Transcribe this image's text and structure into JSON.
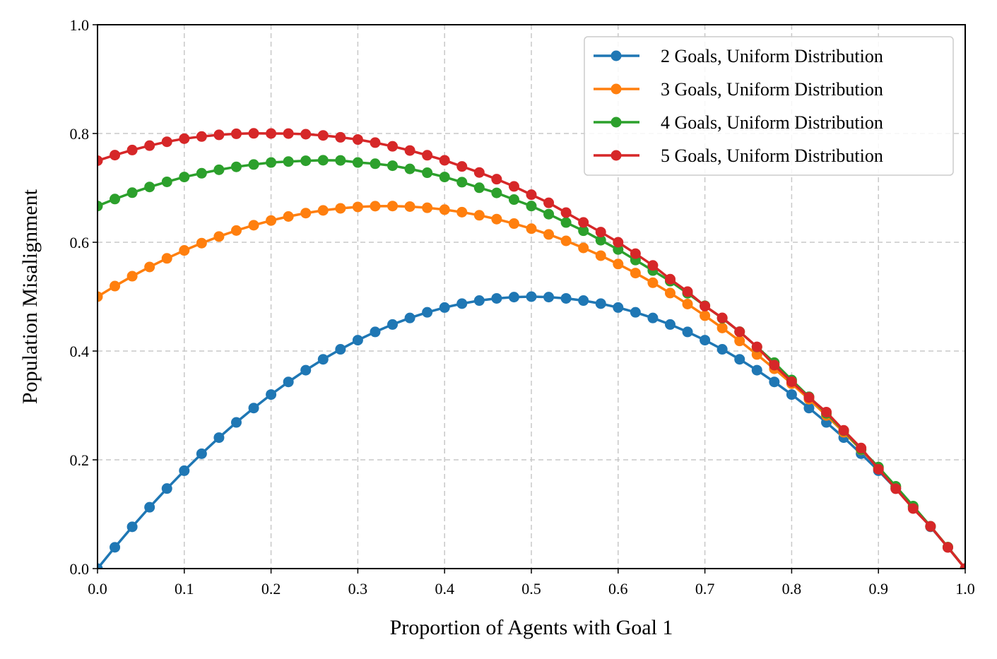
{
  "chart_data": {
    "type": "line",
    "title": "",
    "xlabel": "Proportion of Agents with Goal 1",
    "ylabel": "Population Misalignment",
    "xlim": [
      0.0,
      1.0
    ],
    "ylim": [
      0.0,
      1.0
    ],
    "xticks": [
      "0.0",
      "0.1",
      "0.2",
      "0.3",
      "0.4",
      "0.5",
      "0.6",
      "0.7",
      "0.8",
      "0.9",
      "1.0"
    ],
    "yticks": [
      "0.0",
      "0.2",
      "0.4",
      "0.6",
      "0.8",
      "1.0"
    ],
    "xtick_values": [
      0.0,
      0.1,
      0.2,
      0.3,
      0.4,
      0.5,
      0.6,
      0.7,
      0.8,
      0.9,
      1.0
    ],
    "ytick_values": [
      0.0,
      0.2,
      0.4,
      0.6,
      0.8,
      1.0
    ],
    "grid": true,
    "legend_position": "top-right",
    "x": [
      0.0,
      0.02,
      0.04,
      0.06,
      0.08,
      0.1,
      0.12,
      0.14,
      0.16,
      0.18,
      0.2,
      0.22,
      0.24,
      0.26,
      0.28,
      0.3,
      0.32,
      0.34,
      0.36,
      0.38,
      0.4,
      0.42,
      0.44,
      0.46,
      0.48,
      0.5,
      0.52,
      0.54,
      0.56,
      0.58,
      0.6,
      0.62,
      0.64,
      0.66,
      0.68,
      0.7,
      0.72,
      0.74,
      0.76,
      0.78,
      0.8,
      0.82,
      0.84,
      0.86,
      0.88,
      0.9,
      0.92,
      0.94,
      0.96,
      0.98,
      1.0
    ],
    "series": [
      {
        "name": "2 Goals, Uniform Distribution",
        "color": "#1f77b4",
        "values": [
          0.0,
          0.0392,
          0.0768,
          0.1128,
          0.1472,
          0.18,
          0.2112,
          0.2408,
          0.2688,
          0.2952,
          0.32,
          0.3432,
          0.3648,
          0.3848,
          0.4032,
          0.42,
          0.4352,
          0.4488,
          0.4608,
          0.4712,
          0.48,
          0.4872,
          0.4928,
          0.4968,
          0.4992,
          0.5,
          0.4992,
          0.4968,
          0.4928,
          0.4872,
          0.48,
          0.4712,
          0.4608,
          0.4488,
          0.4352,
          0.42,
          0.4032,
          0.3848,
          0.3648,
          0.3432,
          0.32,
          0.2952,
          0.2688,
          0.2408,
          0.2112,
          0.18,
          0.1472,
          0.1128,
          0.0768,
          0.0392,
          0.0
        ]
      },
      {
        "name": "3 Goals, Uniform Distribution",
        "color": "#ff7f0e",
        "values": [
          0.5,
          0.5194,
          0.5376,
          0.5546,
          0.5704,
          0.585,
          0.5984,
          0.6106,
          0.6216,
          0.6314,
          0.64,
          0.6474,
          0.6536,
          0.6586,
          0.6624,
          0.665,
          0.6664,
          0.6666,
          0.6656,
          0.6634,
          0.66,
          0.6554,
          0.6496,
          0.6426,
          0.6344,
          0.625,
          0.6144,
          0.6026,
          0.5896,
          0.5754,
          0.56,
          0.5434,
          0.5256,
          0.5066,
          0.4864,
          0.465,
          0.4424,
          0.4186,
          0.3936,
          0.3674,
          0.34,
          0.3114,
          0.2816,
          0.2506,
          0.2184,
          0.185,
          0.1504,
          0.1146,
          0.0776,
          0.0394,
          0.0
        ]
      },
      {
        "name": "4 Goals, Uniform Distribution",
        "color": "#2ca02c",
        "values": [
          0.6667,
          0.6795,
          0.6912,
          0.7017,
          0.7111,
          0.72,
          0.7269,
          0.7333,
          0.7387,
          0.743,
          0.7467,
          0.7484,
          0.7499,
          0.7508,
          0.7505,
          0.7467,
          0.7444,
          0.7408,
          0.7349,
          0.7279,
          0.72,
          0.7105,
          0.7003,
          0.6908,
          0.6785,
          0.6667,
          0.6517,
          0.6363,
          0.6212,
          0.6038,
          0.5867,
          0.5673,
          0.548,
          0.5285,
          0.5062,
          0.4833,
          0.4603,
          0.4356,
          0.4074,
          0.3787,
          0.3467,
          0.3159,
          0.2855,
          0.2536,
          0.2191,
          0.1867,
          0.1513,
          0.115,
          0.0778,
          0.0395,
          0.0
        ]
      },
      {
        "name": "5 Goals, Uniform Distribution",
        "color": "#d62728",
        "values": [
          0.75,
          0.7603,
          0.7696,
          0.7777,
          0.7848,
          0.7905,
          0.7944,
          0.7975,
          0.7995,
          0.8003,
          0.8,
          0.7999,
          0.7987,
          0.7965,
          0.793,
          0.7889,
          0.7832,
          0.7764,
          0.7687,
          0.76,
          0.7507,
          0.7394,
          0.7283,
          0.716,
          0.7027,
          0.6875,
          0.6725,
          0.6545,
          0.6365,
          0.6187,
          0.6,
          0.5791,
          0.5574,
          0.5321,
          0.5092,
          0.4827,
          0.461,
          0.4354,
          0.4077,
          0.3741,
          0.3435,
          0.3147,
          0.2877,
          0.2542,
          0.2217,
          0.1827,
          0.1469,
          0.1104,
          0.0777,
          0.0389,
          0.0
        ]
      }
    ]
  }
}
